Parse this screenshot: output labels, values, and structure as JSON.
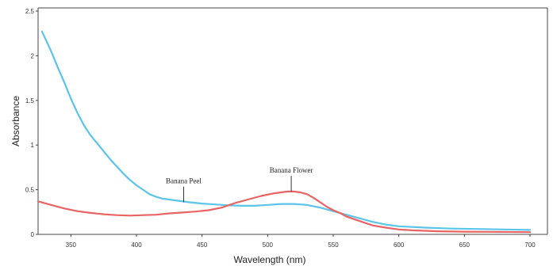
{
  "chart_data": {
    "type": "line",
    "title": "",
    "xlabel": "Wavelength  (nm)",
    "ylabel": "Absorbance",
    "xlim": [
      325,
      700
    ],
    "ylim": [
      0,
      2.5
    ],
    "x_ticks": [
      350,
      400,
      450,
      500,
      550,
      600,
      650,
      700
    ],
    "y_ticks": [
      0,
      0.5,
      1,
      1.5,
      2,
      2.5
    ],
    "y_tick_labels": [
      "0",
      "0.5",
      "1",
      "1.5",
      "2",
      "2.5"
    ],
    "grid": false,
    "series": [
      {
        "name": "Banana Peel",
        "color": "#5bc4e8",
        "points": [
          [
            328,
            2.27
          ],
          [
            335,
            2.05
          ],
          [
            340,
            1.87
          ],
          [
            345,
            1.7
          ],
          [
            350,
            1.52
          ],
          [
            355,
            1.36
          ],
          [
            360,
            1.22
          ],
          [
            365,
            1.11
          ],
          [
            370,
            1.02
          ],
          [
            375,
            0.93
          ],
          [
            380,
            0.84
          ],
          [
            385,
            0.76
          ],
          [
            390,
            0.68
          ],
          [
            395,
            0.61
          ],
          [
            400,
            0.55
          ],
          [
            405,
            0.5
          ],
          [
            410,
            0.45
          ],
          [
            415,
            0.42
          ],
          [
            420,
            0.4
          ],
          [
            430,
            0.38
          ],
          [
            440,
            0.36
          ],
          [
            450,
            0.345
          ],
          [
            460,
            0.335
          ],
          [
            470,
            0.325
          ],
          [
            480,
            0.32
          ],
          [
            490,
            0.32
          ],
          [
            500,
            0.33
          ],
          [
            510,
            0.34
          ],
          [
            520,
            0.34
          ],
          [
            530,
            0.33
          ],
          [
            540,
            0.3
          ],
          [
            550,
            0.26
          ],
          [
            560,
            0.22
          ],
          [
            570,
            0.18
          ],
          [
            580,
            0.14
          ],
          [
            590,
            0.11
          ],
          [
            600,
            0.09
          ],
          [
            620,
            0.075
          ],
          [
            640,
            0.065
          ],
          [
            660,
            0.06
          ],
          [
            680,
            0.055
          ],
          [
            700,
            0.05
          ]
        ]
      },
      {
        "name": "Banana Flower",
        "color": "#e86464",
        "points": [
          [
            325,
            0.37
          ],
          [
            335,
            0.33
          ],
          [
            345,
            0.29
          ],
          [
            355,
            0.26
          ],
          [
            365,
            0.24
          ],
          [
            375,
            0.225
          ],
          [
            385,
            0.215
          ],
          [
            395,
            0.21
          ],
          [
            405,
            0.215
          ],
          [
            415,
            0.22
          ],
          [
            425,
            0.235
          ],
          [
            435,
            0.245
          ],
          [
            445,
            0.255
          ],
          [
            455,
            0.27
          ],
          [
            465,
            0.3
          ],
          [
            475,
            0.35
          ],
          [
            485,
            0.39
          ],
          [
            495,
            0.43
          ],
          [
            505,
            0.46
          ],
          [
            515,
            0.48
          ],
          [
            520,
            0.48
          ],
          [
            525,
            0.47
          ],
          [
            530,
            0.45
          ],
          [
            535,
            0.41
          ],
          [
            540,
            0.36
          ],
          [
            545,
            0.31
          ],
          [
            550,
            0.27
          ],
          [
            555,
            0.24
          ],
          [
            560,
            0.2
          ],
          [
            570,
            0.15
          ],
          [
            580,
            0.1
          ],
          [
            590,
            0.075
          ],
          [
            600,
            0.055
          ],
          [
            610,
            0.045
          ],
          [
            630,
            0.035
          ],
          [
            650,
            0.03
          ],
          [
            670,
            0.028
          ],
          [
            700,
            0.025
          ]
        ]
      }
    ],
    "annotations": [
      {
        "text": "Banana Peel",
        "x": 436,
        "y": 0.36,
        "label_y": 0.57
      },
      {
        "text": "Banana Flower",
        "x": 518,
        "y": 0.48,
        "label_y": 0.69
      }
    ]
  }
}
